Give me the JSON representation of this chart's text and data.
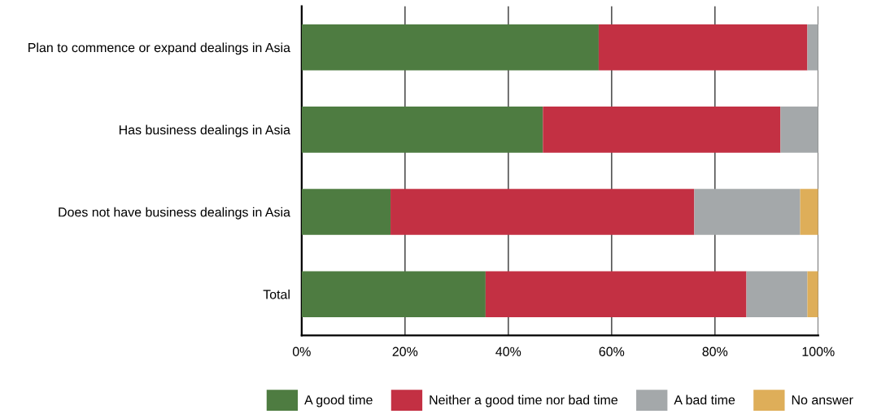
{
  "chart_data": {
    "type": "bar",
    "orientation": "horizontal",
    "stacked": true,
    "categories": [
      "Plan to commence or expand dealings in Asia",
      "Has business dealings in Asia",
      "Does not have business dealings in Asia",
      "Total"
    ],
    "series": [
      {
        "name": "A good time",
        "color": "#4e7c41",
        "values": [
          57.5,
          46.7,
          17.2,
          35.6
        ]
      },
      {
        "name": "Neither a good time nor bad time",
        "color": "#c33043",
        "values": [
          40.4,
          46.0,
          58.8,
          50.5
        ]
      },
      {
        "name": "A bad time",
        "color": "#a4a8aa",
        "values": [
          2.1,
          7.3,
          20.5,
          11.8
        ]
      },
      {
        "name": "No answer",
        "color": "#deae59",
        "values": [
          0,
          0,
          3.5,
          2.1
        ]
      }
    ],
    "xlim": [
      0,
      100
    ],
    "xticks": [
      {
        "value": 0,
        "label": "0%"
      },
      {
        "value": 20,
        "label": "20%"
      },
      {
        "value": 40,
        "label": "40%"
      },
      {
        "value": 60,
        "label": "60%"
      },
      {
        "value": 80,
        "label": "80%"
      },
      {
        "value": 100,
        "label": "100%"
      }
    ],
    "grid": "x",
    "legend": "bottom"
  }
}
